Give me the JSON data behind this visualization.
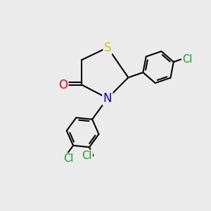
{
  "background_color": "#ebebeb",
  "atom_colors": {
    "S": "#cccc00",
    "N": "#0000ff",
    "O": "#ff0000",
    "Cl": "#00aa00",
    "C": "#000000"
  },
  "bond_color": "#000000",
  "bond_width": 1.5,
  "font_size_S": 12,
  "font_size_N": 12,
  "font_size_O": 12,
  "font_size_Cl": 10.5
}
